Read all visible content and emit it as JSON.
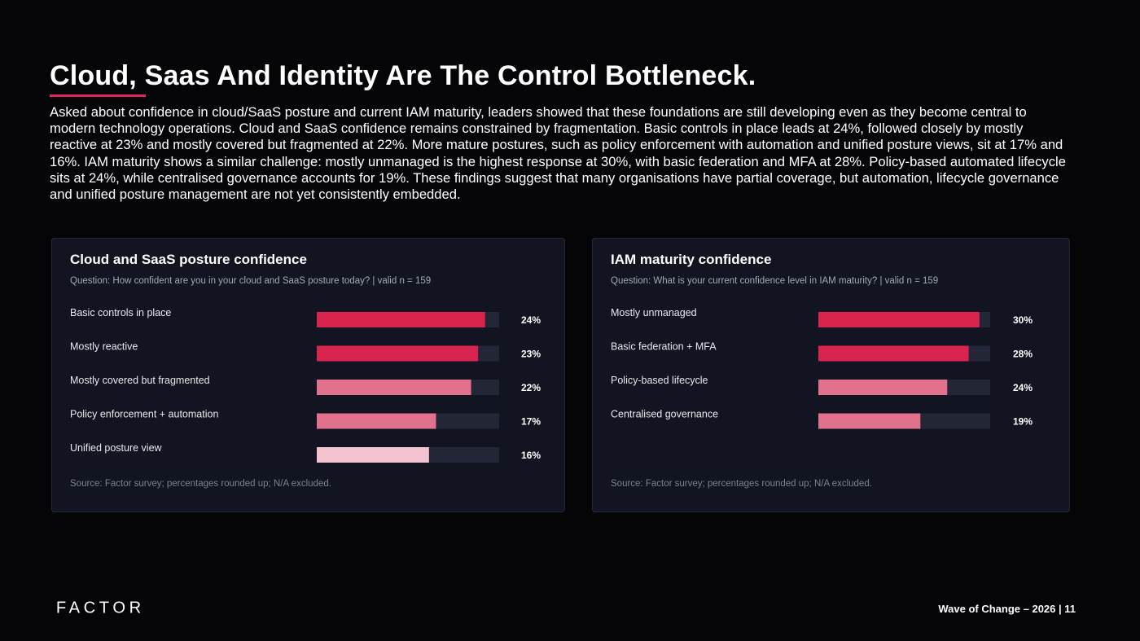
{
  "slide": {
    "title": "Cloud, Saas And Identity Are The Control Bottleneck.",
    "intro": "Asked about confidence in cloud/SaaS posture and current IAM maturity, leaders showed that these foundations are still developing even as they become central to modern technology operations. Cloud and SaaS confidence remains constrained by fragmentation. Basic controls in place leads at 24%, followed closely by mostly reactive at 23% and mostly covered but fragmented at 22%. More mature postures, such as policy enforcement with automation and unified posture views, sit at 17% and 16%. IAM maturity shows a similar challenge: mostly unmanaged is the highest response at 30%, with basic federation and MFA at 28%. Policy-based automated lifecycle sits at 24%, while centralised governance accounts for 19%. These findings suggest that many organisations have partial coverage, but automation, lifecycle governance and unified posture management are not yet consistently embedded.",
    "logo_text": "FACTOR",
    "footer": "Wave of Change – 2026 | 11"
  },
  "colors": {
    "accent": "#e0245e",
    "bar_dark": "#d8244f",
    "bar_mid": "#e2718d",
    "bar_light": "#f4c3d0",
    "bar_track": "#222637"
  },
  "chart_data": [
    {
      "type": "bar",
      "orientation": "horizontal",
      "title": "Cloud and SaaS posture confidence",
      "subtitle": "Question: How confident are you in your cloud and SaaS posture today? | valid n = 159",
      "source": "Source: Factor survey; percentages rounded up; N/A excluded.",
      "categories": [
        "Basic controls in place",
        "Mostly reactive",
        "Mostly covered but fragmented",
        "Policy enforcement + automation",
        "Unified posture view"
      ],
      "values": [
        24,
        23,
        22,
        17,
        16
      ],
      "value_labels": [
        "24%",
        "23%",
        "22%",
        "17%",
        "16%"
      ],
      "bar_colors": [
        "#d8244f",
        "#d8244f",
        "#e2718d",
        "#e2718d",
        "#f4c3d0"
      ],
      "xlim": [
        0,
        26
      ]
    },
    {
      "type": "bar",
      "orientation": "horizontal",
      "title": "IAM maturity confidence",
      "subtitle": "Question: What is your current confidence level in IAM maturity? | valid n = 159",
      "source": "Source: Factor survey; percentages rounded up; N/A excluded.",
      "categories": [
        "Mostly unmanaged",
        "Basic federation + MFA",
        "Policy-based lifecycle",
        "Centralised governance"
      ],
      "values": [
        30,
        28,
        24,
        19
      ],
      "value_labels": [
        "30%",
        "28%",
        "24%",
        "19%"
      ],
      "bar_colors": [
        "#d8244f",
        "#d8244f",
        "#e2718d",
        "#e2718d"
      ],
      "xlim": [
        0,
        32
      ]
    }
  ]
}
